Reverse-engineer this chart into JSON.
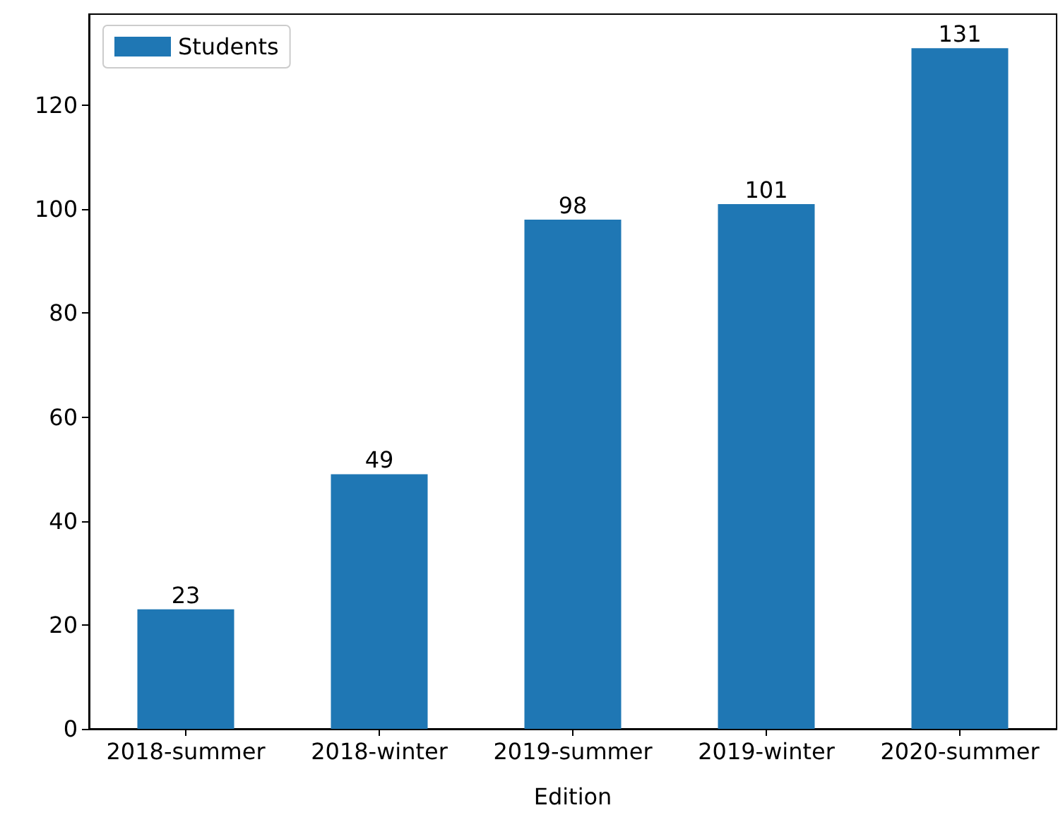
{
  "chart_data": {
    "type": "bar",
    "xlabel": "Edition",
    "categories": [
      "2018-summer",
      "2018-winter",
      "2019-summer",
      "2019-winter",
      "2020-summer"
    ],
    "series": [
      {
        "name": "Students",
        "color": "#1f77b4",
        "values": [
          23,
          49,
          98,
          101,
          131
        ]
      }
    ],
    "ylim": [
      0,
      137.55
    ],
    "yticks": [
      0,
      20,
      40,
      60,
      80,
      100,
      120
    ],
    "data_labels": true,
    "legend": "top left",
    "grid": false
  }
}
